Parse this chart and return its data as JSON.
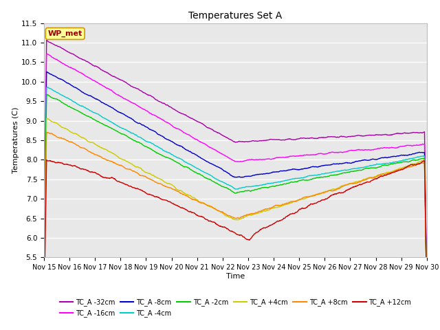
{
  "title": "Temperatures Set A",
  "xlabel": "Time",
  "ylabel": "Temperatures (C)",
  "ylim": [
    5.5,
    11.5
  ],
  "xlim": [
    0,
    15
  ],
  "xtick_labels": [
    "Nov 15",
    "Nov 16",
    "Nov 17",
    "Nov 18",
    "Nov 19",
    "Nov 20",
    "Nov 21",
    "Nov 22",
    "Nov 23",
    "Nov 24",
    "Nov 25",
    "Nov 26",
    "Nov 27",
    "Nov 28",
    "Nov 29",
    "Nov 30"
  ],
  "annotation": "WP_met",
  "annotation_bg": "#ffff99",
  "annotation_border": "#cc9900",
  "annotation_text_color": "#990000",
  "fig_bg": "#ffffff",
  "plot_bg": "#e8e8e8",
  "grid_color": "#ffffff",
  "series": [
    {
      "label": "TC_A -32cm",
      "color": "#aa00aa"
    },
    {
      "label": "TC_A -16cm",
      "color": "#ff00ff"
    },
    {
      "label": "TC_A -8cm",
      "color": "#0000cc"
    },
    {
      "label": "TC_A -4cm",
      "color": "#00cccc"
    },
    {
      "label": "TC_A -2cm",
      "color": "#00cc00"
    },
    {
      "label": "TC_A +4cm",
      "color": "#cccc00"
    },
    {
      "label": "TC_A +8cm",
      "color": "#ff8800"
    },
    {
      "label": "TC_A +12cm",
      "color": "#cc0000"
    }
  ]
}
